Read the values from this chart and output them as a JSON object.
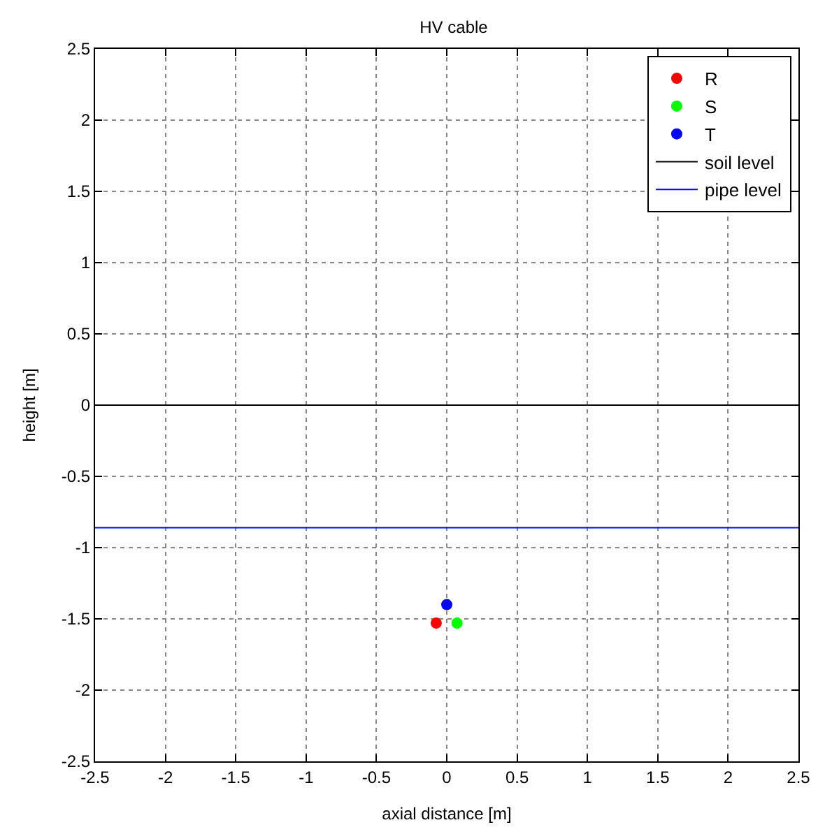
{
  "chart_data": {
    "type": "scatter",
    "title": "HV cable",
    "xlabel": "axial distance [m]",
    "ylabel": "height [m]",
    "xlim": [
      -2.5,
      2.5
    ],
    "ylim": [
      -2.5,
      2.5
    ],
    "xticks": [
      -2.5,
      -2,
      -1.5,
      -1,
      -0.5,
      0,
      0.5,
      1,
      1.5,
      2,
      2.5
    ],
    "yticks": [
      -2.5,
      -2,
      -1.5,
      -1,
      -0.5,
      0,
      0.5,
      1,
      1.5,
      2,
      2.5
    ],
    "grid": true,
    "legend": "top right",
    "series": [
      {
        "name": "R",
        "color": "#ff0000",
        "marker": "circle",
        "x": [
          -0.075
        ],
        "values": [
          -1.53
        ]
      },
      {
        "name": "S",
        "color": "#00ff00",
        "marker": "circle",
        "x": [
          0.073
        ],
        "values": [
          -1.53
        ]
      },
      {
        "name": "T",
        "color": "#0000ff",
        "marker": "circle",
        "x": [
          0
        ],
        "values": [
          -1.4
        ]
      },
      {
        "name": "soil level",
        "type": "line",
        "color": "#000000",
        "x": [
          -2.5,
          2.5
        ],
        "values": [
          0,
          0
        ]
      },
      {
        "name": "pipe level",
        "type": "line",
        "color": "#0000ff",
        "x": [
          -2.5,
          2.5
        ],
        "values": [
          -0.86,
          -0.86
        ]
      }
    ]
  }
}
